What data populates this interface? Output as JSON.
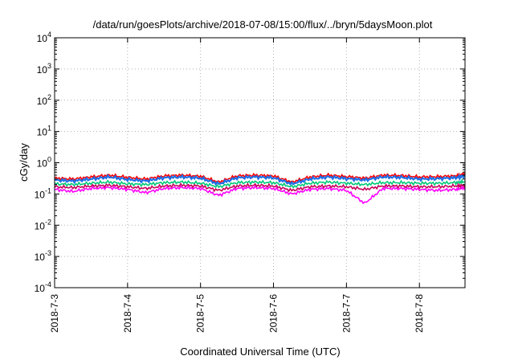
{
  "chart_data": {
    "type": "line",
    "title": "/data/run/goesPlots/archive/2018-07-08/15:00/flux/../bryn/5daysMoon.plot",
    "xlabel": "Coordinated Universal Time (UTC)",
    "ylabel": "cGy/day",
    "yscale": "log",
    "ylim": [
      0.0001,
      10000
    ],
    "y_ticks": [
      {
        "base": "10",
        "exp": "-4",
        "value": 0.0001
      },
      {
        "base": "10",
        "exp": "-3",
        "value": 0.001
      },
      {
        "base": "10",
        "exp": "-2",
        "value": 0.01
      },
      {
        "base": "10",
        "exp": "-1",
        "value": 0.1
      },
      {
        "base": "10",
        "exp": "0",
        "value": 1
      },
      {
        "base": "10",
        "exp": "1",
        "value": 10
      },
      {
        "base": "10",
        "exp": "2",
        "value": 100
      },
      {
        "base": "10",
        "exp": "3",
        "value": 1000
      },
      {
        "base": "10",
        "exp": "4",
        "value": 10000
      }
    ],
    "x_ticks": [
      "2018-7-3",
      "2018-7-4",
      "2018-7-5",
      "2018-7-6",
      "2018-7-7",
      "2018-7-8"
    ],
    "xlim": [
      "2018-07-03 00:00",
      "2018-07-08 15:00"
    ],
    "grid": true,
    "x": [
      "2018-07-03 00:00",
      "2018-07-03 06:00",
      "2018-07-03 12:00",
      "2018-07-03 18:00",
      "2018-07-04 00:00",
      "2018-07-04 06:00",
      "2018-07-04 12:00",
      "2018-07-04 18:00",
      "2018-07-05 00:00",
      "2018-07-05 06:00",
      "2018-07-05 12:00",
      "2018-07-05 18:00",
      "2018-07-06 00:00",
      "2018-07-06 06:00",
      "2018-07-06 12:00",
      "2018-07-06 18:00",
      "2018-07-07 00:00",
      "2018-07-07 06:00",
      "2018-07-07 12:00",
      "2018-07-07 18:00",
      "2018-07-08 00:00",
      "2018-07-08 06:00",
      "2018-07-08 12:00",
      "2018-07-08 15:00"
    ],
    "series": [
      {
        "color": "#ff0000",
        "values": [
          0.32,
          0.3,
          0.35,
          0.4,
          0.34,
          0.3,
          0.38,
          0.4,
          0.37,
          0.24,
          0.38,
          0.4,
          0.38,
          0.24,
          0.35,
          0.4,
          0.36,
          0.32,
          0.4,
          0.39,
          0.35,
          0.36,
          0.38,
          0.44
        ]
      },
      {
        "color": "#1e6ee6",
        "values": [
          0.28,
          0.26,
          0.3,
          0.35,
          0.29,
          0.26,
          0.33,
          0.35,
          0.32,
          0.21,
          0.33,
          0.35,
          0.33,
          0.21,
          0.3,
          0.35,
          0.31,
          0.28,
          0.35,
          0.34,
          0.3,
          0.31,
          0.33,
          0.38
        ]
      },
      {
        "color": "#00c878",
        "values": [
          0.21,
          0.2,
          0.22,
          0.24,
          0.21,
          0.2,
          0.23,
          0.24,
          0.22,
          0.17,
          0.23,
          0.24,
          0.23,
          0.17,
          0.22,
          0.24,
          0.22,
          0.2,
          0.23,
          0.23,
          0.22,
          0.22,
          0.23,
          0.25
        ]
      },
      {
        "color": "#ff00ff",
        "values": [
          0.14,
          0.12,
          0.15,
          0.16,
          0.14,
          0.11,
          0.15,
          0.16,
          0.15,
          0.09,
          0.15,
          0.16,
          0.15,
          0.1,
          0.14,
          0.15,
          0.13,
          0.05,
          0.15,
          0.15,
          0.14,
          0.13,
          0.14,
          0.16
        ]
      },
      {
        "color": "#c8005a",
        "values": [
          0.17,
          0.16,
          0.18,
          0.19,
          0.17,
          0.15,
          0.18,
          0.19,
          0.18,
          0.13,
          0.18,
          0.19,
          0.18,
          0.13,
          0.17,
          0.18,
          0.17,
          0.14,
          0.18,
          0.18,
          0.17,
          0.17,
          0.18,
          0.19
        ]
      }
    ]
  }
}
